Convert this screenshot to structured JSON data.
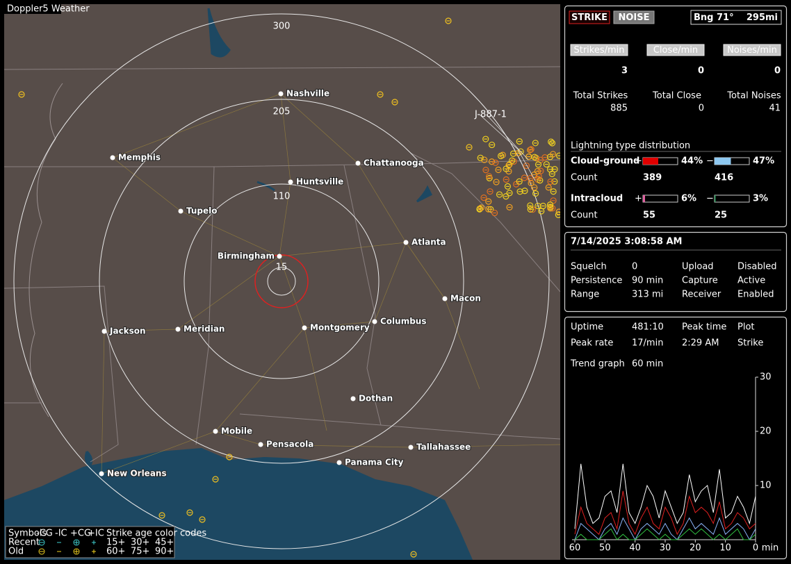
{
  "app_title": "Doppler5 Weather",
  "map": {
    "range_labels": [
      300,
      205,
      110,
      15
    ],
    "cities": [
      "Nashville",
      "Memphis",
      "Chattanooga",
      "Huntsville",
      "Tupelo",
      "Birmingham",
      "Atlanta",
      "Macon",
      "Jackson",
      "Meridian",
      "Montgomery",
      "Columbus",
      "Dothan",
      "Mobile",
      "Pensacola",
      "Tallahassee",
      "Panama City",
      "New Orleans"
    ],
    "track_label": "J-887-1",
    "legend": {
      "headers": [
        "Symbols",
        "-CG",
        "-IC",
        "+CG",
        "+IC",
        "Strike age color codes"
      ],
      "rows": [
        "Recent",
        "Old"
      ],
      "age_codes": [
        [
          "15+",
          "30+",
          "45+"
        ],
        [
          "60+",
          "75+",
          "90+"
        ]
      ]
    }
  },
  "panel": {
    "modes": [
      "STRIKE",
      "NOISE"
    ],
    "bearing": "Bng 71°",
    "distance": "295mi",
    "rates": [
      {
        "label": "Strikes/min",
        "value": 3
      },
      {
        "label": "Close/min",
        "value": 0
      },
      {
        "label": "Noises/min",
        "value": 0
      }
    ],
    "totals": [
      {
        "label": "Total Strikes",
        "value": 885
      },
      {
        "label": "Total Close",
        "value": 0
      },
      {
        "label": "Total Noises",
        "value": 41
      }
    ],
    "distribution": {
      "title": "Lightning type distribution",
      "signs": [
        "+",
        "−"
      ],
      "count_label": "Count",
      "cloud_ground": {
        "label": "Cloud-ground",
        "values": [
          44,
          47
        ],
        "value_labels": [
          "44%",
          "47%"
        ],
        "counts": [
          389,
          416
        ]
      },
      "intracloud": {
        "label": "Intracloud",
        "values": [
          6,
          3
        ],
        "value_labels": [
          "6%",
          "3%"
        ],
        "counts": [
          55,
          25
        ]
      }
    },
    "datetime": "7/14/2025 3:08:58 AM",
    "settings": [
      [
        "Squelch",
        0,
        "Upload",
        "Disabled"
      ],
      [
        "Persistence",
        "90 min",
        "Capture",
        "Active"
      ],
      [
        "Range",
        "313 mi",
        "Receiver",
        "Enabled"
      ]
    ],
    "stats": [
      [
        "Uptime",
        "481:10",
        "Peak time",
        "Plot"
      ],
      [
        "Peak rate",
        "17/min",
        "2:29 AM",
        "Strike"
      ]
    ],
    "trend_label": "Trend graph",
    "trend_window": "60 min",
    "trend": {
      "type": "line",
      "x": [
        60,
        58,
        56,
        54,
        52,
        50,
        48,
        46,
        44,
        42,
        40,
        38,
        36,
        34,
        32,
        30,
        28,
        26,
        24,
        22,
        20,
        18,
        16,
        14,
        12,
        10,
        8,
        6,
        4,
        2,
        0
      ],
      "xlim": [
        60,
        0
      ],
      "ylim": [
        0,
        30
      ],
      "xticks": [
        60,
        50,
        40,
        30,
        20,
        10,
        0
      ],
      "yticks": [
        10,
        20,
        30
      ],
      "x_label": "min",
      "series": [
        {
          "color": "#ffffff",
          "values": [
            2,
            14,
            6,
            3,
            4,
            8,
            9,
            5,
            14,
            5,
            3,
            6,
            10,
            8,
            4,
            9,
            6,
            3,
            5,
            12,
            7,
            9,
            10,
            5,
            13,
            4,
            5,
            8,
            6,
            3,
            8
          ]
        },
        {
          "color": "#e02020",
          "values": [
            1,
            6,
            3,
            2,
            1,
            4,
            5,
            2,
            9,
            3,
            1,
            4,
            6,
            3,
            2,
            6,
            4,
            1,
            3,
            8,
            5,
            6,
            5,
            3,
            7,
            2,
            3,
            5,
            4,
            2,
            3
          ]
        },
        {
          "color": "#8ab4f8",
          "values": [
            0,
            3,
            2,
            1,
            0,
            2,
            3,
            1,
            4,
            2,
            0,
            2,
            3,
            2,
            1,
            3,
            1,
            0,
            2,
            4,
            2,
            3,
            2,
            1,
            4,
            1,
            2,
            3,
            2,
            0,
            2
          ]
        },
        {
          "color": "#30c040",
          "values": [
            0,
            1,
            0,
            0,
            0,
            1,
            2,
            0,
            1,
            0,
            0,
            1,
            2,
            1,
            0,
            1,
            0,
            0,
            1,
            2,
            1,
            2,
            1,
            0,
            1,
            0,
            1,
            2,
            0,
            0,
            1
          ]
        }
      ]
    }
  }
}
